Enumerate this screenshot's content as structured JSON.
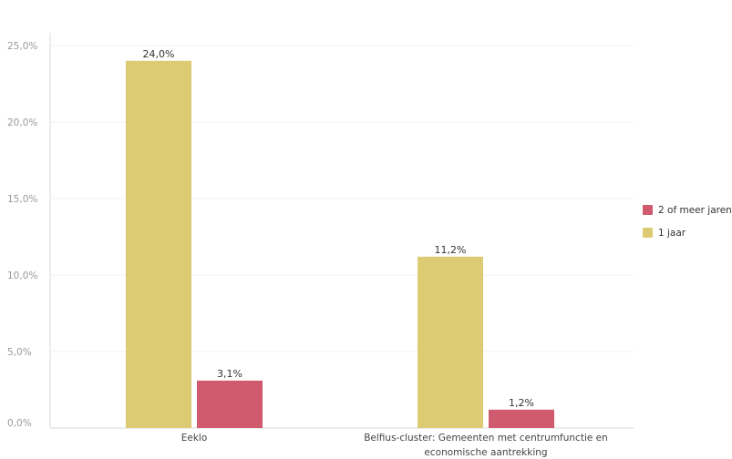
{
  "chart_data": {
    "type": "bar",
    "categories": [
      [
        "Eeklo"
      ],
      [
        "Belfius-cluster: Gemeenten met centrumfunctie en",
        "economische aantrekking"
      ]
    ],
    "series": [
      {
        "name": "1 jaar",
        "color": "#dccb72",
        "values": [
          24.0,
          11.2
        ],
        "labels": [
          "24,0%",
          "11,2%"
        ]
      },
      {
        "name": "2 of meer jaren",
        "color": "#d05a6e",
        "values": [
          3.1,
          1.2
        ],
        "labels": [
          "3,1%",
          "1,2%"
        ]
      }
    ],
    "legend": [
      {
        "name": "2 of meer jaren",
        "color": "#d05a6e"
      },
      {
        "name": "1 jaar",
        "color": "#dccb72"
      }
    ],
    "y_ticks": [
      {
        "value": 0,
        "label": "0,0%"
      },
      {
        "value": 5,
        "label": "5,0%"
      },
      {
        "value": 10,
        "label": "10,0%"
      },
      {
        "value": 15,
        "label": "15,0%"
      },
      {
        "value": 20,
        "label": "20,0%"
      },
      {
        "value": 25,
        "label": "25,0%"
      }
    ],
    "ylim": [
      0,
      25
    ],
    "grid": true,
    "legend_position": "right"
  }
}
